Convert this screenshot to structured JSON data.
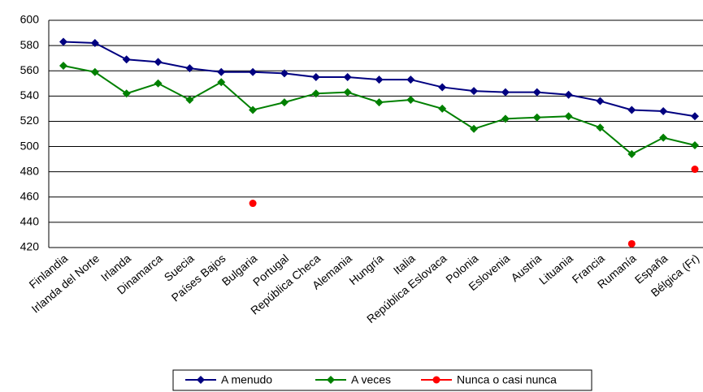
{
  "chart_data": {
    "type": "line",
    "categories": [
      "Finlandia",
      "Irlanda del Norte",
      "Irlanda",
      "Dinamarca",
      "Suecia",
      "Países Bajos",
      "Bulgaria",
      "Portugal",
      "República Checa",
      "Alemania",
      "Hungría",
      "Italia",
      "República Eslovaca",
      "Polonia",
      "Eslovenia",
      "Austria",
      "Lituania",
      "Francia",
      "Rumanía",
      "España",
      "Bélgica (Fr)"
    ],
    "series": [
      {
        "name": "A menudo",
        "color": "#000080",
        "marker": "diamond",
        "values": [
          583,
          582,
          569,
          567,
          562,
          559,
          559,
          558,
          555,
          555,
          553,
          553,
          547,
          544,
          543,
          543,
          541,
          536,
          529,
          528,
          524
        ]
      },
      {
        "name": "A veces",
        "color": "#008000",
        "marker": "diamond",
        "values": [
          564,
          559,
          542,
          550,
          537,
          551,
          529,
          535,
          542,
          543,
          535,
          537,
          530,
          514,
          522,
          523,
          524,
          515,
          494,
          507,
          501
        ]
      },
      {
        "name": "Nunca o casi nunca",
        "color": "#ff0000",
        "marker": "circle",
        "values": [
          null,
          null,
          null,
          null,
          null,
          null,
          455,
          null,
          null,
          null,
          null,
          null,
          null,
          null,
          null,
          null,
          null,
          null,
          423,
          null,
          482
        ]
      }
    ],
    "ylim": [
      420,
      600
    ],
    "yticks": [
      420,
      440,
      460,
      480,
      500,
      520,
      540,
      560,
      580,
      600
    ],
    "grid": true
  }
}
